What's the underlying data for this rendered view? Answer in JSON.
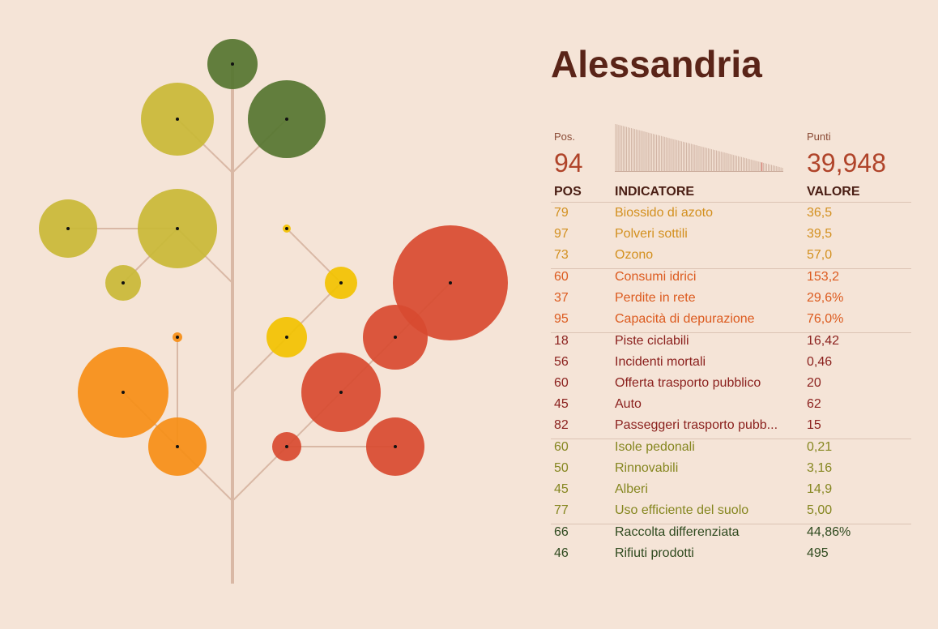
{
  "title": "Alessandria",
  "summary": {
    "pos_label": "Pos.",
    "pos": "94",
    "points_label": "Punti",
    "points": "39,948"
  },
  "table": {
    "columns": [
      "POS",
      "INDICATORE",
      "VALORE"
    ],
    "groups": [
      {
        "color": "#d3901f",
        "rows": [
          [
            "79",
            "Biossido di azoto",
            "36,5"
          ],
          [
            "97",
            "Polveri sottili",
            "39,5"
          ],
          [
            "73",
            "Ozono",
            "57,0"
          ]
        ]
      },
      {
        "color": "#dc5a1e",
        "rows": [
          [
            "60",
            "Consumi idrici",
            "153,2"
          ],
          [
            "37",
            "Perdite in rete",
            "29,6%"
          ],
          [
            "95",
            "Capacità di depurazione",
            "76,0%"
          ]
        ]
      },
      {
        "color": "#8a1f1c",
        "rows": [
          [
            "18",
            "Piste ciclabili",
            "16,42"
          ],
          [
            "56",
            "Incidenti mortali",
            "0,46"
          ],
          [
            "60",
            "Offerta trasporto pubblico",
            "20"
          ],
          [
            "45",
            "Auto",
            "62"
          ],
          [
            "82",
            "Passeggeri trasporto pubb...",
            "15"
          ]
        ]
      },
      {
        "color": "#85861f",
        "rows": [
          [
            "60",
            "Isole pedonali",
            "0,21"
          ],
          [
            "50",
            "Rinnovabili",
            "3,16"
          ],
          [
            "45",
            "Alberi",
            "14,9"
          ],
          [
            "77",
            "Uso efficiente del suolo",
            "5,00"
          ]
        ]
      },
      {
        "color": "#2f4a1f",
        "rows": [
          [
            "66",
            "Raccolta differenziata",
            "44,86%"
          ],
          [
            "46",
            "Rifiuti prodotti",
            "495"
          ]
        ]
      }
    ]
  }
}
